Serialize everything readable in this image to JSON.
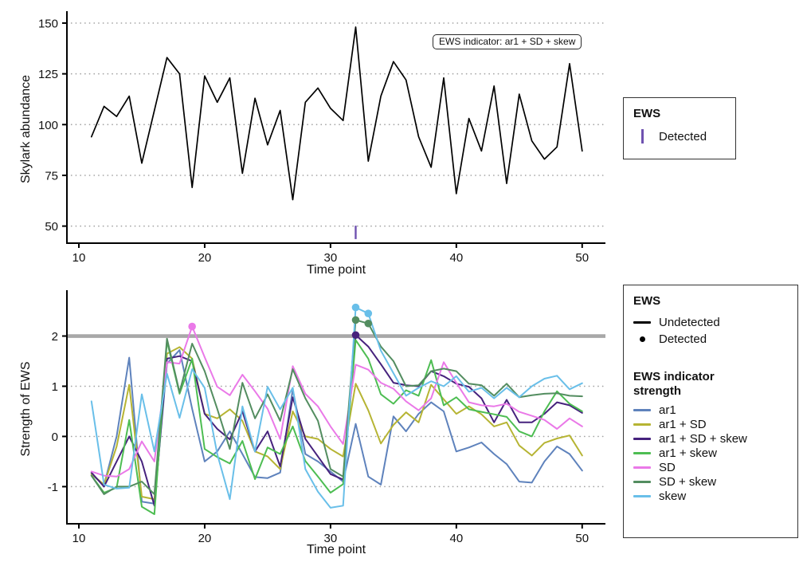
{
  "top_panel": {
    "ylabel": "Skylark abundance",
    "xlabel": "Time point",
    "annotation_label": "EWS indicator: ar1 + SD + skew",
    "legend": {
      "title": "EWS",
      "items": [
        {
          "label": "Detected",
          "marker": "vertical-bar",
          "color": "#6F52B0"
        }
      ]
    }
  },
  "bottom_panel": {
    "ylabel": "Strength of EWS",
    "xlabel": "Time point",
    "legend_ews": {
      "title": "EWS",
      "items": [
        {
          "label": "Undetected",
          "marker": "line",
          "color": "#000000"
        },
        {
          "label": "Detected",
          "marker": "dot",
          "color": "#000000"
        }
      ]
    },
    "legend_strength": {
      "title": "EWS indicator strength",
      "items": [
        {
          "label": "ar1",
          "color": "#5E82BC"
        },
        {
          "label": "ar1 + SD",
          "color": "#B6B433"
        },
        {
          "label": "ar1 + SD + skew",
          "color": "#46227D"
        },
        {
          "label": "ar1 + skew",
          "color": "#4DBD52"
        },
        {
          "label": "SD",
          "color": "#EA79E8"
        },
        {
          "label": "SD + skew",
          "color": "#538D60"
        },
        {
          "label": "skew",
          "color": "#69BFE9"
        }
      ]
    }
  },
  "chart_data": [
    {
      "type": "line",
      "title": "",
      "xlabel": "Time point",
      "ylabel": "Skylark abundance",
      "xlim": [
        9.05,
        51.85
      ],
      "ylim": [
        41.6,
        154.3
      ],
      "xticks": [
        10,
        20,
        30,
        40,
        50
      ],
      "yticks": [
        50,
        75,
        100,
        125,
        150
      ],
      "grid": "dotted-horizontal",
      "legend_position": "right",
      "annotation": "EWS indicator: ar1 + SD + skew",
      "x": [
        11,
        12,
        13,
        14,
        15,
        16,
        17,
        18,
        19,
        20,
        21,
        22,
        23,
        24,
        25,
        26,
        27,
        28,
        29,
        30,
        31,
        32,
        33,
        34,
        35,
        36,
        37,
        38,
        39,
        40,
        41,
        42,
        43,
        44,
        45,
        46,
        47,
        48,
        49,
        50
      ],
      "series": [
        {
          "name": "Skylark abundance",
          "color": "#000000",
          "values": [
            94,
            109,
            104,
            114,
            81,
            107,
            133,
            125,
            69,
            124,
            111,
            123,
            76,
            113,
            90,
            107,
            63,
            111,
            118,
            108,
            102,
            148,
            82,
            114,
            131,
            122,
            94,
            79,
            123,
            66,
            103,
            87,
            119,
            71,
            115,
            92,
            83,
            89,
            130,
            87
          ]
        }
      ],
      "detection_rug": {
        "x": [
          32
        ],
        "y_from": 43.6,
        "y_to": 50.2,
        "color": "#6F52B0"
      }
    },
    {
      "type": "line",
      "title": "",
      "xlabel": "Time point",
      "ylabel": "Strength of EWS",
      "xlim": [
        9.05,
        51.85
      ],
      "ylim": [
        -1.74,
        2.85
      ],
      "xticks": [
        10,
        20,
        30,
        40,
        50
      ],
      "yticks": [
        -1,
        0,
        1,
        2
      ],
      "grid": "dotted-horizontal",
      "threshold_line": {
        "y": 2,
        "color": "#A8A8A8",
        "width": 4.6
      },
      "x": [
        11,
        12,
        13,
        14,
        15,
        16,
        17,
        18,
        19,
        20,
        21,
        22,
        23,
        24,
        25,
        26,
        27,
        28,
        29,
        30,
        31,
        32,
        33,
        34,
        35,
        36,
        37,
        38,
        39,
        40,
        41,
        42,
        43,
        44,
        45,
        46,
        47,
        48,
        49,
        50
      ],
      "series": [
        {
          "name": "ar1",
          "color": "#5E82BC",
          "values": [
            -0.75,
            -0.97,
            0.0,
            1.57,
            -1.3,
            -1.34,
            1.45,
            1.72,
            0.55,
            -0.5,
            -0.3,
            0.1,
            -0.35,
            -0.81,
            -0.83,
            -0.72,
            0.94,
            -0.35,
            -0.5,
            -0.7,
            -0.9,
            0.25,
            -0.8,
            -0.96,
            0.4,
            0.1,
            0.45,
            0.68,
            0.5,
            -0.3,
            -0.22,
            -0.12,
            -0.35,
            -0.55,
            -0.9,
            -0.92,
            -0.5,
            -0.2,
            -0.35,
            -0.68
          ]
        },
        {
          "name": "ar1 + SD",
          "color": "#B6B433",
          "values": [
            -0.75,
            -0.96,
            -0.2,
            1.03,
            -1.2,
            -1.25,
            1.65,
            1.78,
            1.55,
            0.45,
            0.36,
            0.54,
            0.31,
            -0.3,
            -0.4,
            -0.65,
            0.5,
            0.0,
            -0.05,
            -0.25,
            -0.4,
            1.05,
            0.52,
            -0.14,
            0.23,
            0.48,
            0.28,
            1.03,
            0.74,
            0.45,
            0.6,
            0.44,
            0.2,
            0.28,
            -0.18,
            -0.38,
            -0.13,
            -0.04,
            0.02,
            -0.38
          ]
        },
        {
          "name": "ar1 + SD + skew",
          "color": "#46227D",
          "values": [
            -0.72,
            -1.0,
            -0.5,
            0.0,
            -0.5,
            -1.38,
            1.55,
            1.6,
            1.5,
            0.45,
            0.15,
            -0.06,
            0.5,
            -0.3,
            0.1,
            -0.6,
            0.78,
            -0.05,
            -0.4,
            -0.75,
            -0.86,
            2.02,
            1.79,
            1.44,
            1.07,
            1.02,
            1.0,
            1.3,
            1.2,
            1.05,
            0.99,
            0.76,
            0.28,
            0.73,
            0.28,
            0.28,
            0.45,
            0.68,
            0.62,
            0.47
          ]
        },
        {
          "name": "ar1 + skew",
          "color": "#4DBD52",
          "values": [
            -0.78,
            -1.12,
            -1.02,
            0.33,
            -1.4,
            -1.55,
            1.9,
            0.85,
            1.55,
            -0.25,
            -0.41,
            -0.54,
            -0.09,
            -0.85,
            -0.22,
            -0.35,
            0.2,
            -0.49,
            -0.8,
            -1.12,
            -0.95,
            1.92,
            1.55,
            0.84,
            0.65,
            0.92,
            0.81,
            1.52,
            0.62,
            0.78,
            0.54,
            0.49,
            0.44,
            0.39,
            0.1,
            0.0,
            0.5,
            0.9,
            0.65,
            0.5
          ]
        },
        {
          "name": "SD",
          "color": "#EA79E8",
          "values": [
            -0.7,
            -0.78,
            -0.8,
            -0.65,
            -0.1,
            -0.5,
            1.48,
            1.45,
            2.19,
            1.58,
            0.99,
            0.82,
            1.23,
            0.9,
            0.55,
            -0.05,
            1.4,
            0.85,
            0.6,
            0.2,
            -0.15,
            1.43,
            1.33,
            1.07,
            0.95,
            0.7,
            0.52,
            0.76,
            1.48,
            1.07,
            0.68,
            0.62,
            0.6,
            0.65,
            0.49,
            0.41,
            0.33,
            0.15,
            0.36,
            0.2
          ]
        },
        {
          "name": "SD + skew",
          "color": "#538D60",
          "values": [
            -0.78,
            -1.15,
            -1.0,
            -1.0,
            -0.9,
            -1.15,
            1.95,
            0.88,
            1.85,
            1.3,
            0.55,
            -0.25,
            1.07,
            0.36,
            0.84,
            0.31,
            1.34,
            0.76,
            0.31,
            -0.65,
            -0.8,
            2.32,
            2.25,
            1.79,
            1.5,
            1.0,
            1.02,
            1.3,
            1.35,
            1.3,
            1.05,
            1.02,
            0.81,
            1.05,
            0.78,
            0.82,
            0.85,
            0.86,
            0.81,
            0.8
          ]
        },
        {
          "name": "skew",
          "color": "#69BFE9",
          "values": [
            0.7,
            -0.96,
            -1.04,
            -1.02,
            0.84,
            -0.3,
            1.25,
            0.37,
            1.34,
            0.97,
            -0.35,
            -1.25,
            0.6,
            -0.3,
            0.99,
            0.54,
            0.97,
            -0.65,
            -1.1,
            -1.42,
            -1.38,
            2.57,
            2.45,
            1.71,
            1.26,
            0.81,
            0.97,
            1.1,
            1.0,
            1.2,
            0.89,
            0.97,
            0.76,
            0.97,
            0.78,
            1.0,
            1.15,
            1.21,
            0.94,
            1.06
          ]
        }
      ],
      "detected_points": [
        {
          "series": "SD",
          "x": 19,
          "y": 2.19
        },
        {
          "series": "ar1 + SD + skew",
          "x": 32,
          "y": 2.02
        },
        {
          "series": "SD + skew",
          "x": 32,
          "y": 2.32
        },
        {
          "series": "SD + skew",
          "x": 33,
          "y": 2.25
        },
        {
          "series": "skew",
          "x": 32,
          "y": 2.57
        },
        {
          "series": "skew",
          "x": 33,
          "y": 2.45
        }
      ]
    }
  ]
}
